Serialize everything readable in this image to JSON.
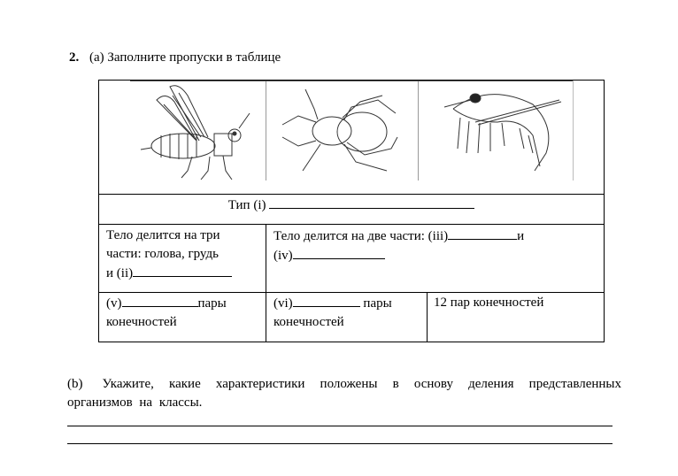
{
  "question": {
    "number": "2.",
    "part_a": "(a) Заполните пропуски в таблице",
    "part_b_label": "(b)",
    "part_b_text": "Укажите, какие характеристики положены в основу деления представленных организмов на классы."
  },
  "table": {
    "images": [
      "insect-drawing",
      "spider-drawing",
      "shrimp-drawing"
    ],
    "type_row": "Тип (i)",
    "row_body": {
      "insects": [
        "Тело делится на три",
        "части: голова, грудь",
        "и (ii)"
      ],
      "others_line1": "Тело делится на две части: (iii)",
      "others_and": "и",
      "others_line2": "(iv)"
    },
    "row_limbs": {
      "col1_prefix": "(v)",
      "col1_suffix": "пары",
      "col1_line2": "конечностей",
      "col2_prefix": "(vi)",
      "col2_suffix": "пары",
      "col2_line2": "конечностей",
      "col3": "12 пар конечностей"
    }
  }
}
